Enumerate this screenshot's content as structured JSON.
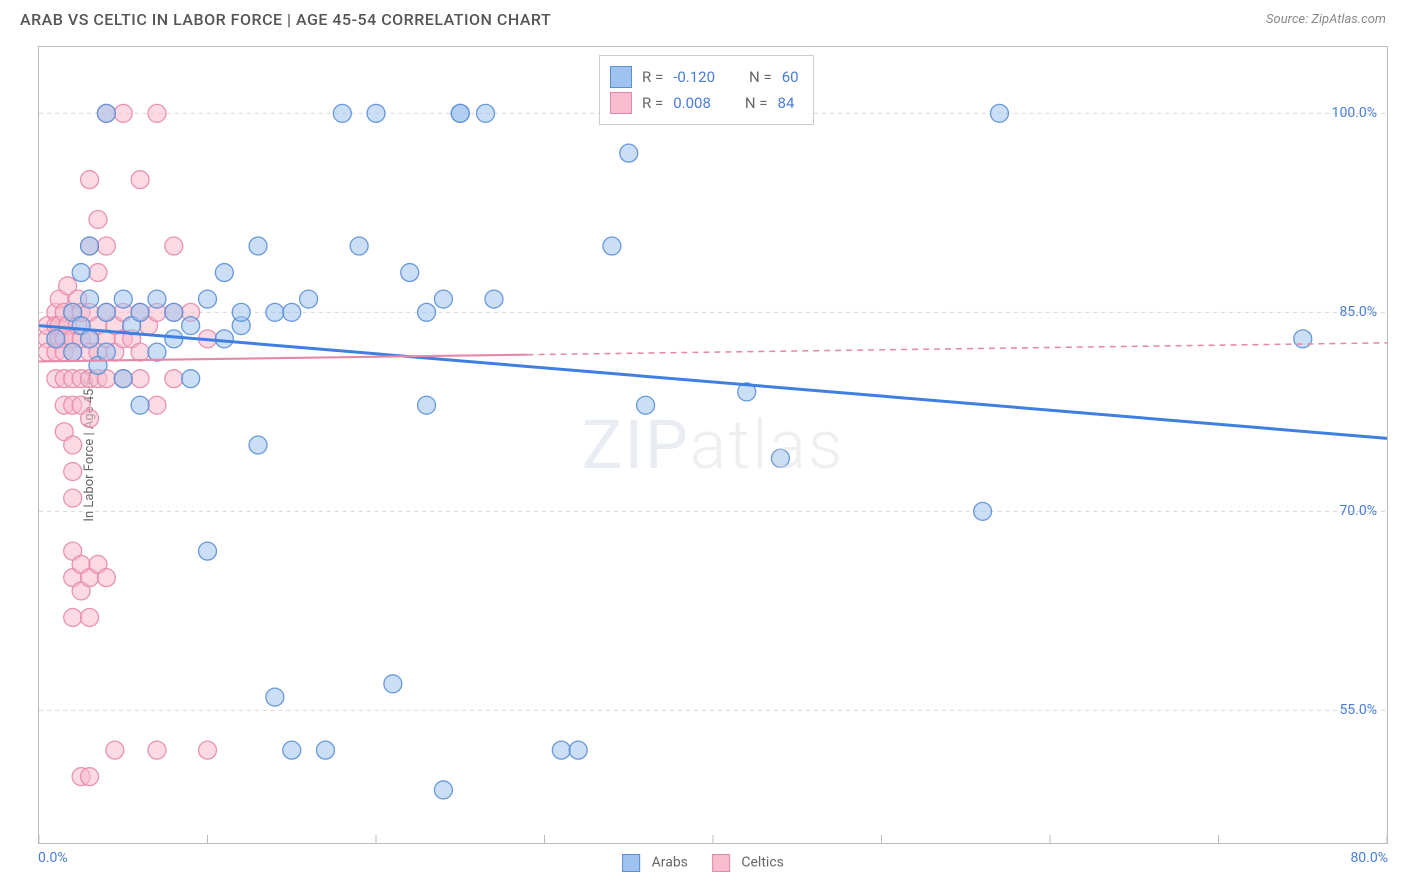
{
  "title": "ARAB VS CELTIC IN LABOR FORCE | AGE 45-54 CORRELATION CHART",
  "source": "Source: ZipAtlas.com",
  "ylabel": "In Labor Force | Age 45-54",
  "watermark_a": "ZIP",
  "watermark_b": "atlas",
  "chart": {
    "type": "scatter-with-trend",
    "background": "#ffffff",
    "border_color": "#bbbbbb",
    "grid_color": "#d8d8d8",
    "grid_dash": "4 4",
    "xlim": [
      0,
      80
    ],
    "ylim": [
      45,
      105
    ],
    "xticks": [
      0,
      10,
      20,
      30,
      40,
      50,
      60,
      70,
      80
    ],
    "xtick_labels": {
      "0": "0.0%",
      "80": "80.0%"
    },
    "yticks": [
      55,
      70,
      85,
      100
    ],
    "ytick_labels": {
      "55": "55.0%",
      "70": "70.0%",
      "85": "85.0%",
      "100": "100.0%"
    },
    "tick_label_color": "#4a7dd8",
    "tick_label_fontsize": 14,
    "marker_radius": 9,
    "marker_opacity": 0.55,
    "marker_stroke_opacity": 0.9,
    "series": [
      {
        "name": "Arabs",
        "fill": "#9ec3ee",
        "stroke": "#5b8fd6",
        "points": [
          [
            1,
            83
          ],
          [
            2,
            85
          ],
          [
            2,
            82
          ],
          [
            2.5,
            88
          ],
          [
            2.5,
            84
          ],
          [
            3,
            86
          ],
          [
            3,
            83
          ],
          [
            3,
            90
          ],
          [
            3.5,
            81
          ],
          [
            4,
            85
          ],
          [
            4,
            82
          ],
          [
            4,
            100
          ],
          [
            5,
            80
          ],
          [
            5,
            86
          ],
          [
            5.5,
            84
          ],
          [
            6,
            85
          ],
          [
            6,
            78
          ],
          [
            7,
            86
          ],
          [
            7,
            82
          ],
          [
            8,
            85
          ],
          [
            8,
            83
          ],
          [
            9,
            84
          ],
          [
            9,
            80
          ],
          [
            10,
            86
          ],
          [
            10,
            67
          ],
          [
            11,
            83
          ],
          [
            11,
            88
          ],
          [
            12,
            84
          ],
          [
            12,
            85
          ],
          [
            13,
            90
          ],
          [
            13,
            75
          ],
          [
            14,
            56
          ],
          [
            14,
            85
          ],
          [
            15,
            85
          ],
          [
            15,
            52
          ],
          [
            16,
            86
          ],
          [
            17,
            52
          ],
          [
            18,
            100
          ],
          [
            19,
            90
          ],
          [
            20,
            100
          ],
          [
            21,
            57
          ],
          [
            22,
            88
          ],
          [
            23,
            78
          ],
          [
            23,
            85
          ],
          [
            24,
            86
          ],
          [
            24,
            49
          ],
          [
            25,
            100
          ],
          [
            25,
            100
          ],
          [
            26.5,
            100
          ],
          [
            27,
            86
          ],
          [
            31,
            52
          ],
          [
            32,
            52
          ],
          [
            34,
            90
          ],
          [
            35,
            97
          ],
          [
            36,
            78
          ],
          [
            42,
            79
          ],
          [
            44,
            74
          ],
          [
            56,
            70
          ],
          [
            57,
            100
          ],
          [
            75,
            83
          ]
        ],
        "trend": {
          "start": [
            0,
            84
          ],
          "end": [
            80,
            75.5
          ],
          "color": "#3f7fe0",
          "width": 3,
          "solid_until": 80
        },
        "R": "-0.120",
        "N": "60"
      },
      {
        "name": "Celtics",
        "fill": "#f7bccd",
        "stroke": "#e589a8",
        "points": [
          [
            0.5,
            83
          ],
          [
            0.5,
            84
          ],
          [
            0.5,
            82
          ],
          [
            1,
            85
          ],
          [
            1,
            83
          ],
          [
            1,
            84
          ],
          [
            1,
            82
          ],
          [
            1,
            80
          ],
          [
            1.2,
            86
          ],
          [
            1.2,
            84
          ],
          [
            1.2,
            83
          ],
          [
            1.5,
            85
          ],
          [
            1.5,
            83
          ],
          [
            1.5,
            82
          ],
          [
            1.5,
            80
          ],
          [
            1.5,
            78
          ],
          [
            1.5,
            76
          ],
          [
            1.7,
            84
          ],
          [
            1.7,
            87
          ],
          [
            2,
            85
          ],
          [
            2,
            83
          ],
          [
            2,
            82
          ],
          [
            2,
            80
          ],
          [
            2,
            78
          ],
          [
            2,
            75
          ],
          [
            2,
            73
          ],
          [
            2,
            71
          ],
          [
            2,
            67
          ],
          [
            2,
            65
          ],
          [
            2,
            62
          ],
          [
            2.3,
            84
          ],
          [
            2.3,
            86
          ],
          [
            2.5,
            85
          ],
          [
            2.5,
            83
          ],
          [
            2.5,
            80
          ],
          [
            2.5,
            78
          ],
          [
            2.5,
            66
          ],
          [
            2.5,
            64
          ],
          [
            2.5,
            50
          ],
          [
            3,
            85
          ],
          [
            3,
            83
          ],
          [
            3,
            82
          ],
          [
            3,
            80
          ],
          [
            3,
            77
          ],
          [
            3,
            95
          ],
          [
            3,
            90
          ],
          [
            3,
            65
          ],
          [
            3,
            62
          ],
          [
            3,
            50
          ],
          [
            3.5,
            84
          ],
          [
            3.5,
            82
          ],
          [
            3.5,
            80
          ],
          [
            3.5,
            88
          ],
          [
            3.5,
            92
          ],
          [
            3.5,
            66
          ],
          [
            4,
            85
          ],
          [
            4,
            83
          ],
          [
            4,
            80
          ],
          [
            4,
            90
          ],
          [
            4,
            100
          ],
          [
            4,
            65
          ],
          [
            4.5,
            84
          ],
          [
            4.5,
            82
          ],
          [
            4.5,
            52
          ],
          [
            5,
            85
          ],
          [
            5,
            83
          ],
          [
            5,
            80
          ],
          [
            5,
            100
          ],
          [
            5.5,
            83
          ],
          [
            6,
            85
          ],
          [
            6,
            82
          ],
          [
            6,
            80
          ],
          [
            6,
            95
          ],
          [
            6.5,
            84
          ],
          [
            7,
            85
          ],
          [
            7,
            78
          ],
          [
            7,
            100
          ],
          [
            7,
            52
          ],
          [
            8,
            85
          ],
          [
            8,
            80
          ],
          [
            8,
            90
          ],
          [
            9,
            85
          ],
          [
            10,
            83
          ],
          [
            10,
            52
          ]
        ],
        "trend": {
          "start": [
            0,
            81.3
          ],
          "end": [
            80,
            82.7
          ],
          "color": "#e589a8",
          "width": 2.2,
          "solid_until": 29
        },
        "R": "0.008",
        "N": "84"
      }
    ]
  },
  "legend_stats": {
    "row1": {
      "r_lbl": "R = ",
      "n_lbl": "N = "
    },
    "row2": {
      "r_lbl": "R = ",
      "n_lbl": "N = "
    }
  },
  "bottom_legend": {
    "a": "Arabs",
    "b": "Celtics"
  }
}
